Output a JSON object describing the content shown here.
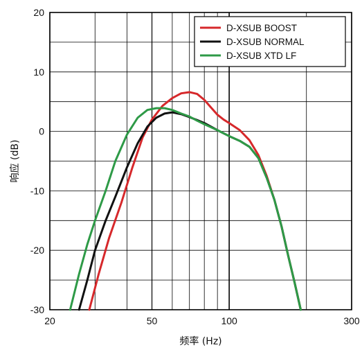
{
  "chart_data": {
    "type": "line",
    "title": "",
    "xlabel": "频率 (Hz)",
    "ylabel": "响应 (dB)",
    "x_scale": "log",
    "xlim": [
      20,
      300
    ],
    "ylim": [
      -30,
      20
    ],
    "x_ticks": [
      20,
      50,
      100,
      300
    ],
    "x_tick_labels": [
      "20",
      "50",
      "100",
      "300"
    ],
    "x_minor_gridlines": [
      30,
      40,
      60,
      70,
      80,
      90,
      200
    ],
    "y_ticks": [
      -30,
      -20,
      -10,
      0,
      10,
      20
    ],
    "y_tick_labels": [
      "-30",
      "-20",
      "-10",
      "0",
      "10",
      "20"
    ],
    "y_minor_gridlines": [
      -25,
      -15,
      -5,
      5,
      15
    ],
    "grid": true,
    "legend_position": "top-right",
    "series": [
      {
        "name": "D-XSUB BOOST",
        "color": "#d6282b",
        "points": [
          [
            28.5,
            -30
          ],
          [
            31,
            -24
          ],
          [
            34,
            -18
          ],
          [
            38,
            -12
          ],
          [
            42,
            -6
          ],
          [
            46,
            -1
          ],
          [
            50,
            2
          ],
          [
            55,
            4.3
          ],
          [
            60,
            5.6
          ],
          [
            65,
            6.4
          ],
          [
            70,
            6.6
          ],
          [
            75,
            6.3
          ],
          [
            80,
            5.3
          ],
          [
            85,
            4
          ],
          [
            90,
            2.8
          ],
          [
            95,
            2
          ],
          [
            100,
            1.4
          ],
          [
            110,
            0.2
          ],
          [
            120,
            -1.5
          ],
          [
            130,
            -4
          ],
          [
            140,
            -7.5
          ],
          [
            150,
            -11.5
          ],
          [
            160,
            -16
          ],
          [
            170,
            -21
          ],
          [
            180,
            -25.5
          ],
          [
            190,
            -30
          ]
        ]
      },
      {
        "name": "D-XSUB NORMAL",
        "color": "#111111",
        "points": [
          [
            26,
            -30
          ],
          [
            28,
            -25
          ],
          [
            30,
            -20
          ],
          [
            33,
            -15
          ],
          [
            36,
            -11
          ],
          [
            40,
            -6
          ],
          [
            44,
            -2
          ],
          [
            48,
            0.8
          ],
          [
            52,
            2.3
          ],
          [
            56,
            3
          ],
          [
            60,
            3.2
          ],
          [
            65,
            2.9
          ],
          [
            70,
            2.4
          ],
          [
            75,
            1.9
          ],
          [
            80,
            1.4
          ],
          [
            90,
            0.2
          ],
          [
            100,
            -0.8
          ],
          [
            110,
            -1.6
          ],
          [
            120,
            -2.6
          ],
          [
            130,
            -4.5
          ],
          [
            140,
            -7.8
          ],
          [
            150,
            -11.5
          ],
          [
            160,
            -16
          ],
          [
            170,
            -21
          ],
          [
            180,
            -25.5
          ],
          [
            190,
            -30
          ]
        ]
      },
      {
        "name": "D-XSUB XTD LF",
        "color": "#2e9a47",
        "points": [
          [
            24,
            -30
          ],
          [
            26,
            -24
          ],
          [
            28,
            -19
          ],
          [
            30,
            -15
          ],
          [
            33,
            -10
          ],
          [
            36,
            -5
          ],
          [
            40,
            -0.5
          ],
          [
            44,
            2.3
          ],
          [
            48,
            3.6
          ],
          [
            52,
            3.9
          ],
          [
            56,
            3.9
          ],
          [
            60,
            3.6
          ],
          [
            65,
            3
          ],
          [
            70,
            2.5
          ],
          [
            75,
            1.8
          ],
          [
            80,
            1.2
          ],
          [
            90,
            0.2
          ],
          [
            100,
            -0.8
          ],
          [
            110,
            -1.6
          ],
          [
            120,
            -2.6
          ],
          [
            130,
            -4.5
          ],
          [
            140,
            -7.8
          ],
          [
            150,
            -11.5
          ],
          [
            160,
            -16
          ],
          [
            170,
            -21
          ],
          [
            180,
            -25.5
          ],
          [
            190,
            -30
          ]
        ]
      }
    ]
  }
}
